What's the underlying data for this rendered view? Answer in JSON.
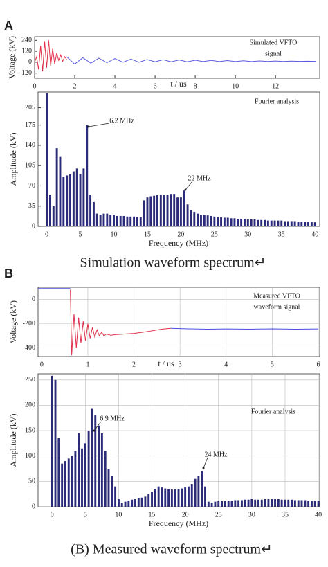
{
  "labels": [
    "A",
    "B"
  ],
  "captions": [
    "Simulation waveform spectrum↵",
    "(B) Measured waveform spectrum↵"
  ],
  "chart_data": [
    {
      "type": "line",
      "ylabel": "Voltage (kV)",
      "xlabel": "t / us",
      "annotations": [
        "Simulated VFTO",
        "signal"
      ],
      "xlim": [
        0,
        14.2
      ],
      "ylim": [
        -175,
        280
      ],
      "xticks": [
        0,
        2,
        4,
        6,
        8,
        10,
        12
      ],
      "yticks": [
        240,
        120,
        0,
        -120
      ],
      "grid": false,
      "series": [
        {
          "color": "#e0304a",
          "x": [
            0,
            0.1,
            0.2,
            0.3,
            0.4,
            0.5,
            0.6,
            0.7,
            0.8,
            0.9,
            1.0,
            1.1,
            1.2,
            1.3,
            1.4,
            1.5,
            1.6
          ],
          "values": [
            0,
            60,
            -80,
            180,
            -100,
            230,
            -60,
            240,
            -40,
            150,
            -20,
            100,
            20,
            80,
            10,
            60,
            30
          ]
        },
        {
          "color": "#5a5ae0",
          "x": [
            1.6,
            2.0,
            2.4,
            2.8,
            3.2,
            3.6,
            4.0,
            4.4,
            4.8,
            5.2,
            5.6,
            6.0,
            6.4,
            6.8,
            7.2,
            7.6,
            8.0,
            8.4,
            8.8,
            9.2,
            9.6,
            10.0,
            10.4,
            10.8,
            11.2,
            11.6,
            12.0,
            12.4,
            12.8,
            13.2,
            13.6,
            14.0
          ],
          "values": [
            60,
            -20,
            50,
            -10,
            45,
            -5,
            40,
            0,
            35,
            0,
            30,
            5,
            28,
            5,
            25,
            5,
            22,
            8,
            20,
            8,
            18,
            8,
            16,
            8,
            15,
            9,
            14,
            9,
            13,
            10,
            12,
            10
          ]
        }
      ]
    },
    {
      "type": "bar",
      "ylabel": "Amplitude (kV)",
      "xlabel": "Frequency (MHz)",
      "annotations": [
        "Fourier analysis",
        "6.2 MHz",
        "22 MHz"
      ],
      "color": "#2b2b7a",
      "xlim": [
        -1.3,
        40.7
      ],
      "ylim": [
        0,
        232
      ],
      "xticks": [
        0,
        5,
        10,
        15,
        20,
        25,
        30,
        35,
        40
      ],
      "yticks": [
        0,
        35,
        70,
        105,
        140,
        175,
        205
      ],
      "grid": false,
      "x": [
        0,
        0.5,
        1,
        1.5,
        2,
        2.5,
        3,
        3.5,
        4,
        4.5,
        5,
        5.5,
        6,
        6.5,
        7,
        7.5,
        8,
        8.5,
        9,
        9.5,
        10,
        10.5,
        11,
        11.5,
        12,
        12.5,
        13,
        13.5,
        14,
        14.5,
        15,
        15.5,
        16,
        16.5,
        17,
        17.5,
        18,
        18.5,
        19,
        19.5,
        20,
        20.5,
        21,
        21.5,
        22,
        22.5,
        23,
        23.5,
        24,
        24.5,
        25,
        25.5,
        26,
        26.5,
        27,
        27.5,
        28,
        28.5,
        29,
        29.5,
        30,
        30.5,
        31,
        31.5,
        32,
        32.5,
        33,
        33.5,
        34,
        34.5,
        35,
        35.5,
        36,
        36.5,
        37,
        37.5,
        38,
        38.5,
        39,
        39.5,
        40
      ],
      "values": [
        230,
        55,
        35,
        135,
        120,
        85,
        88,
        90,
        95,
        100,
        90,
        100,
        175,
        55,
        42,
        22,
        20,
        22,
        22,
        20,
        20,
        18,
        18,
        18,
        17,
        17,
        17,
        16,
        16,
        45,
        50,
        52,
        53,
        54,
        55,
        55,
        55,
        56,
        56,
        50,
        50,
        62,
        38,
        28,
        25,
        22,
        20,
        20,
        19,
        18,
        17,
        16,
        16,
        15,
        15,
        14,
        14,
        13,
        13,
        13,
        12,
        12,
        12,
        11,
        11,
        11,
        10,
        10,
        10,
        10,
        10,
        9,
        9,
        9,
        9,
        8,
        8,
        8,
        8,
        8,
        7
      ]
    },
    {
      "type": "line",
      "ylabel": "Voltage (kV)",
      "xlabel": "t / us",
      "annotations": [
        "Measured VFTO",
        "waveform signal"
      ],
      "xlim": [
        -0.08,
        6.03
      ],
      "ylim": [
        -470,
        100
      ],
      "xticks": [
        0,
        1,
        2,
        3,
        4,
        5,
        6
      ],
      "yticks": [
        0,
        -200,
        -400
      ],
      "grid": true,
      "series": [
        {
          "color": "#4b4be0",
          "x": [
            -0.08,
            0.62
          ],
          "values": [
            90,
            90
          ]
        },
        {
          "color": "#e0304a",
          "x": [
            0.62,
            0.65,
            0.7,
            0.75,
            0.8,
            0.85,
            0.9,
            0.95,
            1.0,
            1.05,
            1.1,
            1.15,
            1.2,
            1.25,
            1.3,
            1.35,
            1.4,
            1.5,
            1.6,
            1.8,
            2.0,
            2.2,
            2.4,
            2.6,
            2.8
          ],
          "values": [
            80,
            -460,
            -120,
            -400,
            -150,
            -360,
            -180,
            -340,
            -200,
            -320,
            -230,
            -310,
            -250,
            -300,
            -270,
            -300,
            -285,
            -295,
            -290,
            -285,
            -280,
            -270,
            -258,
            -245,
            -238
          ]
        },
        {
          "color": "#4b4be0",
          "x": [
            2.8,
            3.2,
            3.6,
            4.0,
            4.5,
            5.0,
            5.5,
            6.0
          ],
          "values": [
            -238,
            -242,
            -245,
            -243,
            -245,
            -242,
            -245,
            -243
          ]
        }
      ]
    },
    {
      "type": "bar",
      "ylabel": "Amplitude (kV)",
      "xlabel": "Frequency (MHz)",
      "annotations": [
        "Fourier analysis",
        "6.9 MHz",
        "24 MHz"
      ],
      "color": "#2b2b7a",
      "xlim": [
        -2.1,
        40.2
      ],
      "ylim": [
        0,
        262
      ],
      "xticks": [
        0,
        5,
        10,
        15,
        20,
        25,
        30,
        35,
        40
      ],
      "yticks": [
        0,
        50,
        100,
        150,
        200,
        250
      ],
      "grid": true,
      "x": [
        0,
        0.5,
        1,
        1.5,
        2,
        2.5,
        3,
        3.5,
        4,
        4.5,
        5,
        5.5,
        6,
        6.5,
        7,
        7.5,
        8,
        8.5,
        9,
        9.5,
        10,
        10.5,
        11,
        11.5,
        12,
        12.5,
        13,
        13.5,
        14,
        14.5,
        15,
        15.5,
        16,
        16.5,
        17,
        17.5,
        18,
        18.5,
        19,
        19.5,
        20,
        20.5,
        21,
        21.5,
        22,
        22.5,
        23,
        23.5,
        24,
        24.5,
        25,
        25.5,
        26,
        26.5,
        27,
        27.5,
        28,
        28.5,
        29,
        29.5,
        30,
        30.5,
        31,
        31.5,
        32,
        32.5,
        33,
        33.5,
        34,
        34.5,
        35,
        35.5,
        36,
        36.5,
        37,
        37.5,
        38,
        38.5,
        39,
        39.5,
        40
      ],
      "values": [
        258,
        250,
        135,
        85,
        90,
        95,
        100,
        110,
        145,
        115,
        125,
        150,
        193,
        180,
        160,
        145,
        110,
        75,
        60,
        40,
        15,
        8,
        10,
        12,
        14,
        15,
        17,
        18,
        20,
        25,
        30,
        35,
        40,
        38,
        36,
        35,
        34,
        34,
        35,
        36,
        38,
        40,
        45,
        55,
        60,
        70,
        40,
        10,
        8,
        10,
        11,
        11,
        12,
        12,
        12,
        13,
        13,
        13,
        14,
        14,
        15,
        14,
        14,
        14,
        15,
        15,
        15,
        15,
        15,
        14,
        14,
        14,
        14,
        13,
        13,
        13,
        13,
        12,
        12,
        12,
        12
      ]
    }
  ]
}
